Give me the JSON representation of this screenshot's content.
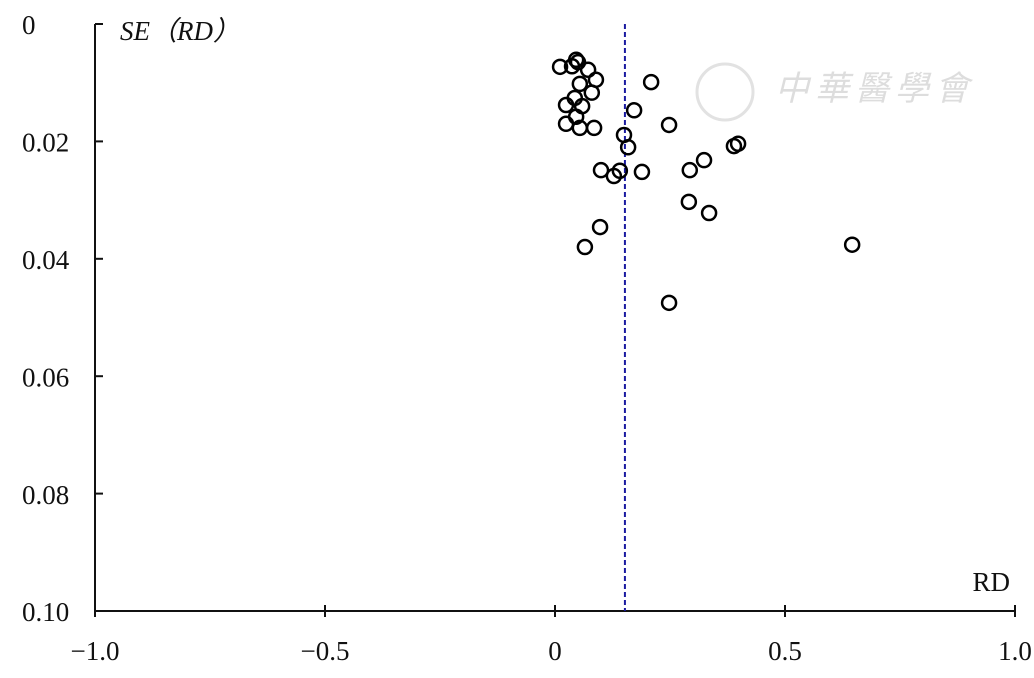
{
  "chart_data": {
    "type": "scatter",
    "x_label": "RD",
    "y_label": "SE（RD）",
    "watermark": "中華醫學會",
    "xlim": [
      -1.0,
      1.0
    ],
    "xticks": [
      {
        "value": -1.0,
        "label": "−1.0"
      },
      {
        "value": -0.5,
        "label": "−0.5"
      },
      0,
      0.5,
      {
        "value": 1.0,
        "label": "1.0"
      }
    ],
    "ylim": [
      0,
      0.1
    ],
    "y_inverted": true,
    "yticks": [
      0,
      0.02,
      0.04,
      0.06,
      0.08,
      {
        "value": 0.1,
        "label": "0.10"
      }
    ],
    "reference_line": 0.152,
    "reference_color": "#1a1aa0",
    "color": "#000000",
    "x": [
      0.011,
      0.037,
      0.046,
      0.05,
      0.072,
      0.089,
      0.054,
      0.08,
      0.043,
      0.024,
      0.059,
      0.046,
      0.024,
      0.054,
      0.085,
      0.209,
      0.172,
      0.248,
      0.15,
      0.159,
      0.389,
      0.398,
      0.324,
      0.293,
      0.1,
      0.128,
      0.141,
      0.189,
      0.291,
      0.335,
      0.098,
      0.065,
      0.646,
      0.248
    ],
    "values": [
      0.0073,
      0.0072,
      0.0061,
      0.0065,
      0.0078,
      0.0095,
      0.0102,
      0.0117,
      0.0126,
      0.0138,
      0.014,
      0.0158,
      0.017,
      0.0177,
      0.0177,
      0.0099,
      0.0147,
      0.0172,
      0.0189,
      0.021,
      0.0208,
      0.0204,
      0.0232,
      0.0249,
      0.0249,
      0.0259,
      0.025,
      0.0252,
      0.0303,
      0.0322,
      0.0346,
      0.038,
      0.0376,
      0.0475
    ]
  }
}
